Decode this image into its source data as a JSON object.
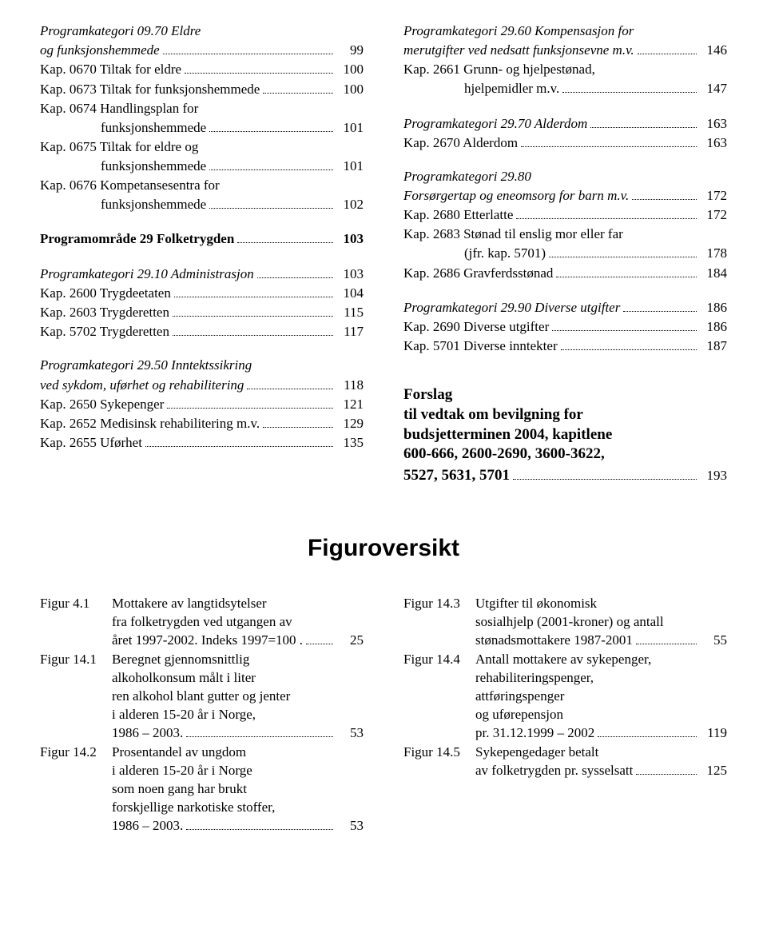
{
  "left_col": [
    {
      "type": "italic-multiline",
      "lines": [
        "Programkategori 09.70 Eldre"
      ],
      "lastline": "og funksjonshemmede",
      "page": "99"
    },
    {
      "type": "line",
      "label": "Kap. 0670 Tiltak for eldre",
      "page": "100"
    },
    {
      "type": "line",
      "label": "Kap. 0673 Tiltak for funksjonshemmede",
      "page": "100"
    },
    {
      "type": "multiline",
      "lines": [
        "Kap. 0674 Handlingsplan for"
      ],
      "lastline": "funksjonshemmede",
      "indent": true,
      "page": "101"
    },
    {
      "type": "multiline",
      "lines": [
        "Kap. 0675 Tiltak for eldre og"
      ],
      "lastline": "funksjonshemmede",
      "indent": true,
      "page": "101"
    },
    {
      "type": "multiline",
      "lines": [
        "Kap. 0676 Kompetansesentra for"
      ],
      "lastline": "funksjonshemmede",
      "indent": true,
      "page": "102"
    },
    {
      "type": "gap"
    },
    {
      "type": "bold",
      "label": "Programområde 29 Folketrygden",
      "page": "103"
    },
    {
      "type": "gap"
    },
    {
      "type": "italic",
      "label": "Programkategori 29.10 Administrasjon",
      "page": "103"
    },
    {
      "type": "line",
      "label": "Kap. 2600 Trygdeetaten",
      "page": "104"
    },
    {
      "type": "line",
      "label": "Kap. 2603 Trygderetten",
      "page": "115"
    },
    {
      "type": "line",
      "label": "Kap. 5702 Trygderetten",
      "page": "117"
    },
    {
      "type": "gap"
    },
    {
      "type": "italic-multiline",
      "lines": [
        "Programkategori 29.50 Inntektssikring"
      ],
      "lastline": "ved sykdom, uførhet og rehabilitering",
      "page": "118"
    },
    {
      "type": "line",
      "label": "Kap. 2650 Sykepenger",
      "page": "121"
    },
    {
      "type": "line",
      "label": "Kap. 2652 Medisinsk rehabilitering m.v.",
      "page": "129"
    },
    {
      "type": "line",
      "label": "Kap. 2655 Uførhet",
      "page": "135"
    }
  ],
  "right_col": [
    {
      "type": "italic-multiline",
      "lines": [
        "Programkategori 29.60 Kompensasjon for"
      ],
      "lastline": "merutgifter ved nedsatt funksjonsevne m.v.",
      "page": "146"
    },
    {
      "type": "multiline",
      "lines": [
        "Kap. 2661 Grunn- og hjelpestønad,"
      ],
      "lastline": "hjelpemidler m.v.",
      "indent": true,
      "page": "147"
    },
    {
      "type": "gap"
    },
    {
      "type": "italic",
      "label": "Programkategori 29.70 Alderdom",
      "page": "163"
    },
    {
      "type": "line",
      "label": "Kap. 2670 Alderdom",
      "page": "163"
    },
    {
      "type": "gap"
    },
    {
      "type": "italic-multiline",
      "lines": [
        "Programkategori 29.80"
      ],
      "lastline": "Forsørgertap og eneomsorg for barn m.v.",
      "page": "172"
    },
    {
      "type": "line",
      "label": "Kap. 2680 Etterlatte",
      "page": "172"
    },
    {
      "type": "multiline",
      "lines": [
        "Kap. 2683 Stønad til enslig mor eller far"
      ],
      "lastline": "(jfr. kap. 5701)",
      "indent": true,
      "page": "178"
    },
    {
      "type": "line",
      "label": "Kap. 2686 Gravferdsstønad",
      "page": "184"
    },
    {
      "type": "gap"
    },
    {
      "type": "italic",
      "label": "Programkategori 29.90 Diverse utgifter",
      "page": "186"
    },
    {
      "type": "line",
      "label": "Kap. 2690 Diverse utgifter",
      "page": "186"
    },
    {
      "type": "line",
      "label": "Kap. 5701 Diverse inntekter",
      "page": "187"
    }
  ],
  "forslag": {
    "lines": [
      "Forslag",
      "til vedtak om bevilgning for",
      "budsjetterminen 2004, kapitlene",
      "600-666, 2600-2690, 3600-3622,"
    ],
    "lastline": "5527, 5631, 5701",
    "page": "193"
  },
  "figur_title": "Figuroversikt",
  "fig_left": [
    {
      "num": "Figur 4.1",
      "lines": [
        "Mottakere av langtidsytelser",
        "fra folketrygden ved utgangen av"
      ],
      "lastline": "året 1997-2002. Indeks 1997=100 .",
      "page": "25"
    },
    {
      "num": "Figur 14.1",
      "lines": [
        "Beregnet gjennomsnittlig",
        "alkoholkonsum målt i liter",
        "ren alkohol blant gutter og jenter",
        "i alderen 15-20 år i Norge,"
      ],
      "lastline": "1986 – 2003.",
      "page": "53"
    },
    {
      "num": "Figur 14.2",
      "lines": [
        "Prosentandel av ungdom",
        "i alderen 15-20 år i Norge",
        "som noen gang har brukt",
        "forskjellige narkotiske stoffer,"
      ],
      "lastline": "1986 – 2003.",
      "page": "53"
    }
  ],
  "fig_right": [
    {
      "num": "Figur 14.3",
      "lines": [
        "Utgifter til økonomisk",
        "sosialhjelp (2001-kroner) og antall"
      ],
      "lastline": "stønadsmottakere 1987-2001",
      "page": "55"
    },
    {
      "num": "Figur 14.4",
      "lines": [
        "Antall mottakere av sykepenger,",
        "rehabiliteringspenger,",
        "attføringspenger",
        "og uførepensjon"
      ],
      "lastline": "pr. 31.12.1999 – 2002",
      "page": "119"
    },
    {
      "num": "Figur 14.5",
      "lines": [
        "Sykepengedager betalt"
      ],
      "lastline": "av folketrygden pr. sysselsatt",
      "page": "125"
    }
  ]
}
